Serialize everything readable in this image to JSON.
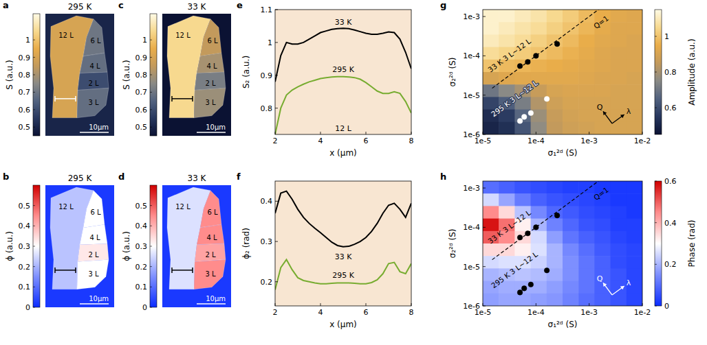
{
  "chart_data": [
    {
      "type": "image",
      "panel_label": "a",
      "title": "295 K",
      "background_value": 0.5,
      "regions": [
        {
          "label": "12 L",
          "value": 0.9
        },
        {
          "label": "6 L",
          "value": 0.7
        },
        {
          "label": "4 L",
          "value": 0.68
        },
        {
          "label": "2 L",
          "value": 0.6
        },
        {
          "label": "3 L",
          "value": 0.68
        }
      ],
      "scale_bar": "10μm",
      "colorbar": {
        "label": "S (a.u.)",
        "range": [
          0.45,
          1.15
        ],
        "ticks": [
          0.5,
          0.6,
          0.7,
          0.8,
          0.9,
          1
        ],
        "colors": [
          "#0b1233",
          "#27375e",
          "#52627f",
          "#8a8a86",
          "#c39a5c",
          "#e9ad4a",
          "#f7d98f",
          "#fffbe6"
        ]
      }
    },
    {
      "type": "image",
      "panel_label": "b",
      "title": "295 K",
      "background_value": 0.02,
      "regions": [
        {
          "label": "12 L",
          "value": 0.22
        },
        {
          "label": "6 L",
          "value": 0.3
        },
        {
          "label": "4 L",
          "value": 0.3
        },
        {
          "label": "2 L",
          "value": 0.33
        },
        {
          "label": "3 L",
          "value": 0.3
        }
      ],
      "scale_bar": "10μm",
      "colorbar": {
        "label": "ϕ (a.u.)",
        "range": [
          0,
          0.6
        ],
        "ticks": [
          0,
          0.1,
          0.2,
          0.3,
          0.4,
          0.5
        ],
        "colors": [
          "#0b2cff",
          "#7d8fff",
          "#ffffff",
          "#ff8c8c",
          "#d10000"
        ]
      }
    },
    {
      "type": "image",
      "panel_label": "c",
      "title": "33 K",
      "background_value": 0.45,
      "regions": [
        {
          "label": "12 L",
          "value": 1.05
        },
        {
          "label": "6 L",
          "value": 0.85
        },
        {
          "label": "4 L",
          "value": 0.8
        },
        {
          "label": "2 L",
          "value": 0.72
        },
        {
          "label": "3 L",
          "value": 0.78
        }
      ],
      "scale_bar": "10μm",
      "colorbar": {
        "label": "S (a.u.)",
        "range": [
          0.45,
          1.15
        ],
        "ticks": [
          0.5,
          0.6,
          0.7,
          0.8,
          0.9,
          1
        ],
        "colors": [
          "#0b1233",
          "#27375e",
          "#52627f",
          "#8a8a86",
          "#c39a5c",
          "#e9ad4a",
          "#f7d98f",
          "#fffbe6"
        ]
      }
    },
    {
      "type": "image",
      "panel_label": "d",
      "title": "33 K",
      "background_value": 0.02,
      "regions": [
        {
          "label": "12 L",
          "value": 0.26
        },
        {
          "label": "6 L",
          "value": 0.45
        },
        {
          "label": "4 L",
          "value": 0.45
        },
        {
          "label": "2 L",
          "value": 0.42
        },
        {
          "label": "3 L",
          "value": 0.45
        }
      ],
      "scale_bar": "10μm",
      "colorbar": {
        "label": "ϕ (a.u.)",
        "range": [
          0,
          0.6
        ],
        "ticks": [
          0,
          0.1,
          0.2,
          0.3,
          0.4,
          0.5
        ],
        "colors": [
          "#0b2cff",
          "#7d8fff",
          "#ffffff",
          "#ff8c8c",
          "#d10000"
        ]
      }
    },
    {
      "type": "line",
      "panel_label": "e",
      "xlabel": "x (μm)",
      "ylabel": "S₂ (a.u.)",
      "xlim": [
        2,
        8
      ],
      "ylim": [
        0.72,
        1.1
      ],
      "xticks": [
        2,
        4,
        6,
        8
      ],
      "yticks": [
        0.8,
        0.9,
        1,
        1.1
      ],
      "x": [
        2,
        2.25,
        2.5,
        2.75,
        3,
        3.25,
        3.5,
        3.75,
        4,
        4.25,
        4.5,
        4.75,
        5,
        5.25,
        5.5,
        5.75,
        6,
        6.25,
        6.5,
        6.75,
        7,
        7.25,
        7.5,
        7.75,
        8
      ],
      "series": [
        {
          "color": "#000000",
          "values": [
            0.88,
            0.96,
            1.0,
            0.995,
            0.995,
            1.0,
            1.01,
            1.02,
            1.03,
            1.035,
            1.04,
            1.042,
            1.043,
            1.042,
            1.038,
            1.033,
            1.028,
            1.025,
            1.025,
            1.028,
            1.032,
            1.03,
            1.01,
            0.97,
            0.92
          ]
        },
        {
          "color": "#77ac30",
          "values": [
            0.72,
            0.8,
            0.84,
            0.855,
            0.865,
            0.873,
            0.88,
            0.885,
            0.89,
            0.893,
            0.895,
            0.896,
            0.896,
            0.895,
            0.893,
            0.888,
            0.878,
            0.865,
            0.852,
            0.845,
            0.845,
            0.85,
            0.845,
            0.82,
            0.785
          ]
        }
      ],
      "annotations": [
        {
          "text": "33 K",
          "x": 5,
          "y": 1.055
        },
        {
          "text": "295 K",
          "x": 5,
          "y": 0.91
        },
        {
          "text": "12 L",
          "x": 5,
          "y": 0.73
        }
      ]
    },
    {
      "type": "line",
      "panel_label": "f",
      "xlabel": "x (μm)",
      "ylabel": "ϕ₂ (rad)",
      "xlim": [
        2,
        8
      ],
      "ylim": [
        0.14,
        0.45
      ],
      "xticks": [
        2,
        4,
        6,
        8
      ],
      "yticks": [
        0.2,
        0.3,
        0.4
      ],
      "x": [
        2,
        2.25,
        2.5,
        2.75,
        3,
        3.25,
        3.5,
        3.75,
        4,
        4.25,
        4.5,
        4.75,
        5,
        5.25,
        5.5,
        5.75,
        6,
        6.25,
        6.5,
        6.75,
        7,
        7.25,
        7.5,
        7.75,
        8
      ],
      "series": [
        {
          "color": "#000000",
          "values": [
            0.37,
            0.42,
            0.425,
            0.405,
            0.38,
            0.36,
            0.345,
            0.333,
            0.322,
            0.31,
            0.298,
            0.29,
            0.287,
            0.288,
            0.293,
            0.3,
            0.31,
            0.325,
            0.345,
            0.37,
            0.39,
            0.395,
            0.38,
            0.36,
            0.395
          ]
        },
        {
          "color": "#77ac30",
          "values": [
            0.18,
            0.235,
            0.255,
            0.23,
            0.21,
            0.203,
            0.2,
            0.197,
            0.195,
            0.195,
            0.196,
            0.197,
            0.197,
            0.197,
            0.196,
            0.195,
            0.195,
            0.198,
            0.205,
            0.22,
            0.245,
            0.248,
            0.225,
            0.22,
            0.245
          ]
        }
      ],
      "annotations": [
        {
          "text": "33 K",
          "x": 5,
          "y": 0.255
        },
        {
          "text": "295 K",
          "x": 5,
          "y": 0.21
        }
      ]
    },
    {
      "type": "heatmap",
      "panel_label": "g",
      "xlabel": "σ₁²ᵈ (S)",
      "ylabel": "σ₂²ᵈ (S)",
      "log": true,
      "xlim": [
        1e-05,
        0.01
      ],
      "ylim": [
        1e-06,
        0.0015
      ],
      "xticks": [
        {
          "value": 1e-05,
          "label": "1e-5"
        },
        {
          "value": 0.0001,
          "label": "1e-4"
        },
        {
          "value": 0.001,
          "label": "1e-3"
        },
        {
          "value": 0.01,
          "label": "1e-2"
        }
      ],
      "yticks": [
        {
          "value": 1e-06,
          "label": "1e-6"
        },
        {
          "value": 1e-05,
          "label": "1e-5"
        },
        {
          "value": 0.0001,
          "label": "1e-4"
        },
        {
          "value": 0.001,
          "label": "1e-3"
        }
      ],
      "cells": [
        [
          1.12,
          1.12,
          1.1,
          1.08,
          1.05,
          1.02,
          0.98,
          0.95,
          0.93,
          0.92
        ],
        [
          1.12,
          1.1,
          1.08,
          1.06,
          1.03,
          1.0,
          0.97,
          0.94,
          0.92,
          0.92
        ],
        [
          1.1,
          1.08,
          1.06,
          1.03,
          1.0,
          0.98,
          0.95,
          0.93,
          0.92,
          0.91
        ],
        [
          1.06,
          1.04,
          1.02,
          1.0,
          0.98,
          0.96,
          0.94,
          0.92,
          0.91,
          0.91
        ],
        [
          1.0,
          0.98,
          0.97,
          0.96,
          0.95,
          0.94,
          0.93,
          0.92,
          0.91,
          0.91
        ],
        [
          0.9,
          0.92,
          0.93,
          0.93,
          0.93,
          0.93,
          0.92,
          0.91,
          0.91,
          0.9
        ],
        [
          0.7,
          0.75,
          0.8,
          0.86,
          0.9,
          0.91,
          0.91,
          0.91,
          0.9,
          0.9
        ],
        [
          0.58,
          0.64,
          0.72,
          0.82,
          0.88,
          0.9,
          0.9,
          0.9,
          0.9,
          0.9
        ],
        [
          0.52,
          0.56,
          0.66,
          0.78,
          0.86,
          0.89,
          0.9,
          0.9,
          0.9,
          0.9
        ],
        [
          0.5,
          0.53,
          0.62,
          0.76,
          0.85,
          0.88,
          0.89,
          0.9,
          0.9,
          0.9
        ]
      ],
      "colorbar": {
        "label": "Amplitude (a.u.)",
        "range": [
          0.45,
          1.15
        ],
        "ticks": [
          0.6,
          0.8,
          1
        ],
        "colors": [
          "#0b1233",
          "#27375e",
          "#52627f",
          "#8a8a86",
          "#c39a5c",
          "#e9ad4a",
          "#f7d98f",
          "#fffbe6"
        ]
      },
      "series": [
        {
          "type": "scatter",
          "label": "33 K 3 L~12 L",
          "color": "#000000",
          "marker": "circle",
          "x": [
            5e-05,
            7e-05,
            0.0001,
            0.00025
          ],
          "values": [
            5.5e-05,
            7e-05,
            0.0001,
            0.0002
          ],
          "label_at": [
            3.2e-05,
            0.0001
          ]
        },
        {
          "type": "scatter",
          "label": "295 K 3 L~12 L",
          "color": "#ffffff",
          "marker": "circle",
          "x": [
            5e-05,
            6e-05,
            8e-05,
            0.00016
          ],
          "values": [
            2.2e-06,
            2.8e-06,
            3.5e-06,
            8e-06
          ],
          "label_at": [
            4e-05,
            8e-06
          ]
        },
        {
          "type": "line",
          "label": "Q=1",
          "color": "#000000",
          "line_style": "dashed",
          "x": [
            1.5e-05,
            0.0015
          ],
          "values": [
            1.5e-05,
            0.0015
          ],
          "label_at": [
            0.0017,
            0.0007
          ]
        }
      ],
      "arrows": [
        "Q",
        "λ"
      ]
    },
    {
      "type": "heatmap",
      "panel_label": "h",
      "xlabel": "σ₁²ᵈ (S)",
      "ylabel": "σ₂²ᵈ (S)",
      "log": true,
      "xlim": [
        1e-05,
        0.01
      ],
      "ylim": [
        1e-06,
        0.0015
      ],
      "xticks": [
        {
          "value": 1e-05,
          "label": "1e-5"
        },
        {
          "value": 0.0001,
          "label": "1e-4"
        },
        {
          "value": 0.001,
          "label": "1e-3"
        },
        {
          "value": 0.01,
          "label": "1e-2"
        }
      ],
      "yticks": [
        {
          "value": 1e-06,
          "label": "1e-6"
        },
        {
          "value": 1e-05,
          "label": "1e-5"
        },
        {
          "value": 0.0001,
          "label": "1e-4"
        },
        {
          "value": 0.001,
          "label": "1e-3"
        }
      ],
      "cells": [
        [
          0.1,
          0.08,
          0.06,
          0.05,
          0.04,
          0.03,
          0.03,
          0.02,
          0.02,
          0.02
        ],
        [
          0.25,
          0.18,
          0.12,
          0.08,
          0.06,
          0.05,
          0.04,
          0.03,
          0.02,
          0.02
        ],
        [
          0.45,
          0.35,
          0.22,
          0.14,
          0.09,
          0.07,
          0.05,
          0.04,
          0.03,
          0.02
        ],
        [
          0.58,
          0.48,
          0.32,
          0.2,
          0.13,
          0.09,
          0.06,
          0.05,
          0.03,
          0.03
        ],
        [
          0.5,
          0.45,
          0.35,
          0.25,
          0.17,
          0.11,
          0.08,
          0.06,
          0.04,
          0.03
        ],
        [
          0.35,
          0.35,
          0.32,
          0.26,
          0.2,
          0.14,
          0.1,
          0.07,
          0.05,
          0.04
        ],
        [
          0.25,
          0.26,
          0.26,
          0.24,
          0.2,
          0.15,
          0.11,
          0.08,
          0.05,
          0.04
        ],
        [
          0.2,
          0.21,
          0.22,
          0.21,
          0.19,
          0.15,
          0.11,
          0.08,
          0.06,
          0.04
        ],
        [
          0.18,
          0.19,
          0.19,
          0.19,
          0.17,
          0.14,
          0.11,
          0.08,
          0.06,
          0.04
        ],
        [
          0.17,
          0.18,
          0.18,
          0.17,
          0.16,
          0.13,
          0.1,
          0.08,
          0.06,
          0.04
        ]
      ],
      "colorbar": {
        "label": "Phase (rad)",
        "range": [
          0,
          0.6
        ],
        "ticks": [
          0,
          0.2,
          0.4,
          0.6
        ],
        "colors": [
          "#0b2cff",
          "#7d8fff",
          "#ffffff",
          "#ff8c8c",
          "#d10000"
        ]
      },
      "series": [
        {
          "type": "scatter",
          "label": "33 K 3 L~12 L",
          "color": "#000000",
          "marker": "circle",
          "x": [
            5e-05,
            7e-05,
            0.0001,
            0.00025
          ],
          "values": [
            5.5e-05,
            7e-05,
            0.0001,
            0.0002
          ],
          "label_at": [
            3.2e-05,
            0.0001
          ]
        },
        {
          "type": "scatter",
          "label": "295 K 3 L~12 L",
          "color": "#000000",
          "marker": "circle",
          "x": [
            5e-05,
            6e-05,
            8e-05,
            0.00016
          ],
          "values": [
            2.2e-06,
            2.8e-06,
            3.5e-06,
            8e-06
          ],
          "label_at": [
            4e-05,
            8e-06
          ]
        },
        {
          "type": "line",
          "label": "Q=1",
          "color": "#000000",
          "line_style": "dashed",
          "x": [
            1.5e-05,
            0.0015
          ],
          "values": [
            1.5e-05,
            0.0015
          ],
          "label_at": [
            0.0017,
            0.0007
          ]
        }
      ],
      "arrows": [
        "Q",
        "λ"
      ]
    }
  ]
}
